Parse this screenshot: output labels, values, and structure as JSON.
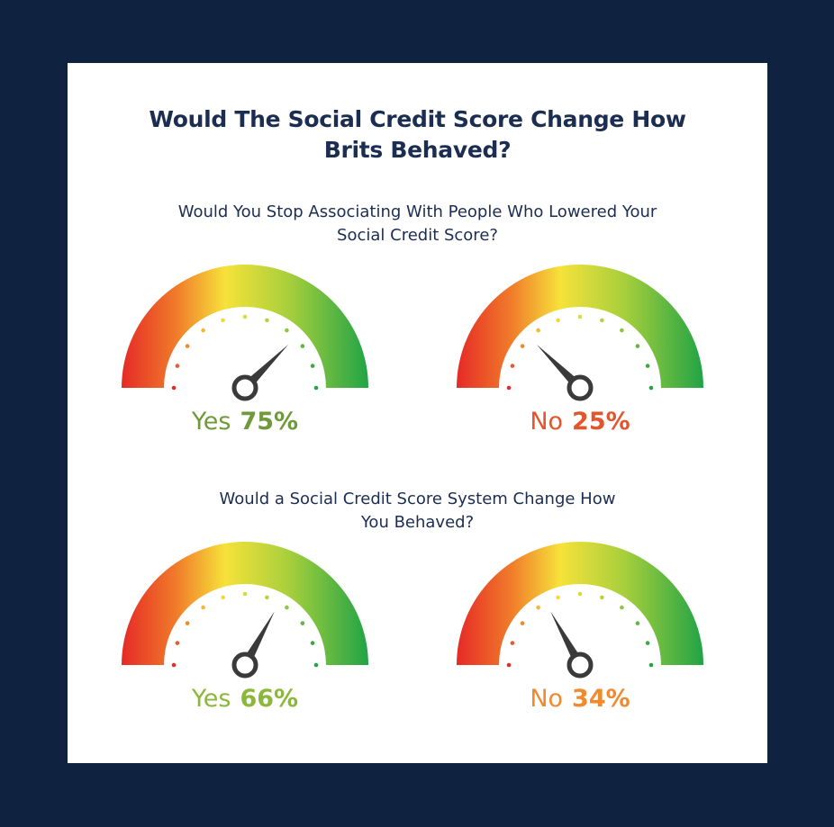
{
  "title_lines": [
    "Would The Social Credit Score Change How",
    "Brits Behaved?"
  ],
  "chart_data": {
    "type": "gauge",
    "title": "Would The Social Credit Score Change How Brits Behaved?",
    "range": [
      0,
      100
    ],
    "groups": [
      {
        "question_lines": [
          "Would You Stop Associating With People Who Lowered Your",
          "Social Credit Score?"
        ],
        "gauges": [
          {
            "label": "Yes",
            "value": 75,
            "value_text": "75%",
            "color": "#6f9a3a"
          },
          {
            "label": "No",
            "value": 25,
            "value_text": "25%",
            "color": "#e2552d"
          }
        ]
      },
      {
        "question_lines": [
          "Would a Social Credit Score System Change How",
          "You Behaved?"
        ],
        "gauges": [
          {
            "label": "Yes",
            "value": 66,
            "value_text": "66%",
            "color": "#8bb83a"
          },
          {
            "label": "No",
            "value": 34,
            "value_text": "34%",
            "color": "#ef8a2e"
          }
        ]
      }
    ]
  }
}
